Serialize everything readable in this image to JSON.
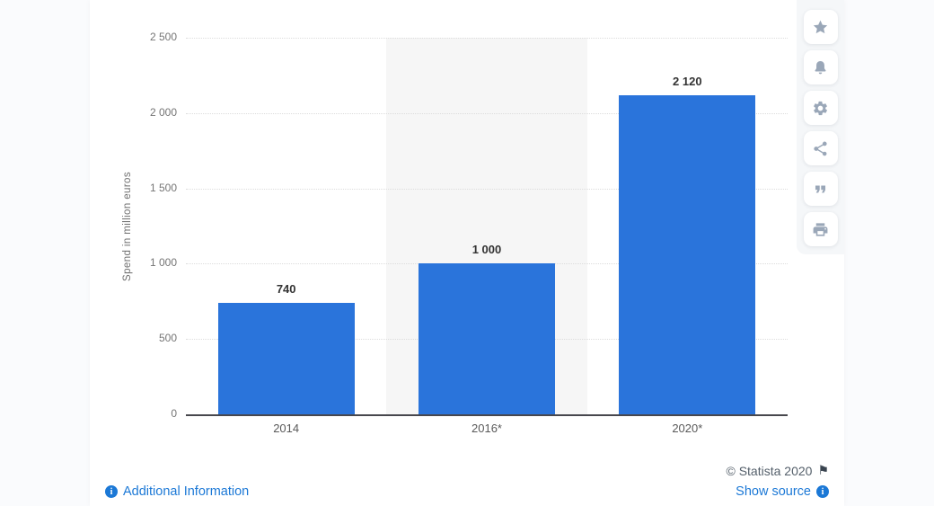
{
  "page": {
    "background_color": "#fafbfd",
    "card_color": "#ffffff"
  },
  "chart_data": {
    "type": "bar",
    "title": "",
    "xlabel": "",
    "ylabel": "Spend in million euros",
    "categories": [
      "2014",
      "2016*",
      "2020*"
    ],
    "values": [
      740,
      1000,
      2120
    ],
    "value_labels": [
      "740",
      "1 000",
      "2 120"
    ],
    "ylim": [
      0,
      2500
    ],
    "yticks": [
      0,
      500,
      1000,
      1500,
      2000,
      2500
    ],
    "ytick_labels": [
      "0",
      "500",
      "1 000",
      "1 500",
      "2 000",
      "2 500"
    ],
    "grid": "horizontal dotted",
    "legend": "none",
    "bar_color": "#2a74db",
    "band_color": "#f6f6f6",
    "highlighted_band_index": 1
  },
  "toolbar": {
    "icons": [
      {
        "name": "favorite-star",
        "label": "favorite"
      },
      {
        "name": "notification-bell",
        "label": "notifications"
      },
      {
        "name": "settings-gear",
        "label": "settings"
      },
      {
        "name": "share",
        "label": "share"
      },
      {
        "name": "cite-quote",
        "label": "cite"
      },
      {
        "name": "print",
        "label": "print"
      }
    ]
  },
  "footer": {
    "copyright": "© Statista 2020",
    "flag_icon": "⚑",
    "additional_info_label": "Additional Information",
    "show_source_label": "Show source",
    "link_color": "#1b78d6"
  }
}
